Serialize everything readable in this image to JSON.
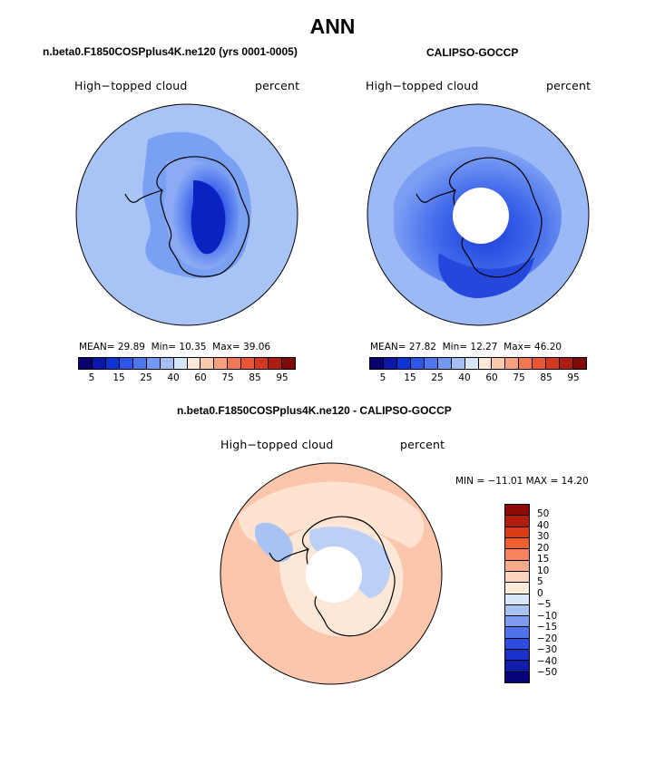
{
  "main_title": "ANN",
  "panels": {
    "model": {
      "title": "n.beta0.F1850COSPplus4K.ne120 (yrs 0001-0005)",
      "variable": "High−topped cloud",
      "units": "percent",
      "mean_label": "MEAN=",
      "mean": "29.89",
      "min_label": "Min=",
      "min": "10.35",
      "max_label": "Max=",
      "max": "39.06"
    },
    "obs": {
      "title": "CALIPSO-GOCCP",
      "variable": "High−topped cloud",
      "units": "percent",
      "mean_label": "MEAN=",
      "mean": "27.82",
      "min_label": "Min=",
      "min": "12.27",
      "max_label": "Max=",
      "max": "46.20"
    },
    "diff": {
      "title": "n.beta0.F1850COSPplus4K.ne120 - CALIPSO-GOCCP",
      "variable": "High−topped cloud",
      "units": "percent",
      "minmax_text": "MIN = −11.01  MAX =  14.20"
    }
  },
  "colorbar_abs": {
    "colors": [
      "#08006e",
      "#0a17a8",
      "#0d33d2",
      "#2e56e6",
      "#4e76ee",
      "#7399f3",
      "#a4bff6",
      "#d6e6fa",
      "#fde7d6",
      "#fbc9ac",
      "#f6a07d",
      "#f17a55",
      "#ea5533",
      "#d13a1f",
      "#aa1d10",
      "#7d0a06"
    ],
    "labels": [
      "5",
      "15",
      "25",
      "40",
      "60",
      "75",
      "85",
      "95"
    ]
  },
  "colorbar_diff": {
    "colors_top_to_bottom": [
      "#8e0a07",
      "#b31e0c",
      "#d93c16",
      "#f0602e",
      "#f5845c",
      "#f8ad8a",
      "#fcd3bd",
      "#fdebd9",
      "#d8e6f9",
      "#a9c2f4",
      "#7d9cf0",
      "#4f73ea",
      "#2b4de1",
      "#1a31c9",
      "#0f1ea8",
      "#07047a"
    ],
    "labels": [
      "50",
      "40",
      "30",
      "20",
      "15",
      "10",
      "5",
      "0",
      "−5",
      "−10",
      "−15",
      "−20",
      "−30",
      "−40",
      "−50"
    ]
  },
  "map_colors": {
    "ocean_model": "#a8c4f7",
    "ocean_obs": "#9bb9f5",
    "ocean_diff": "#fbc6ac",
    "coast": "#000000"
  }
}
